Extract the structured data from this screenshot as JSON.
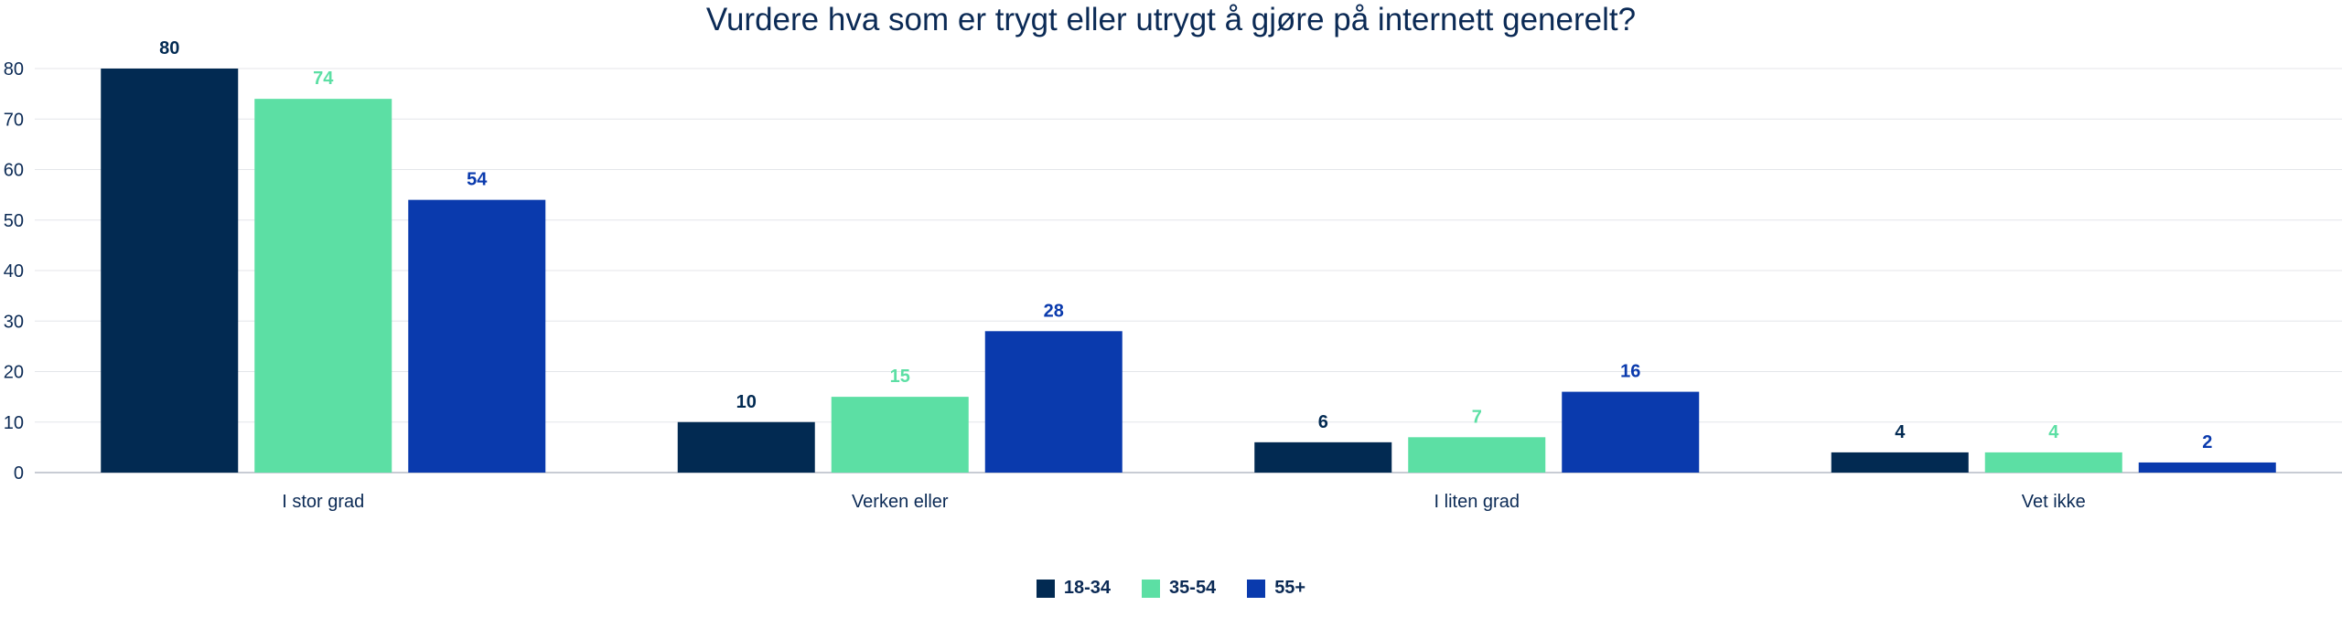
{
  "chart_data": {
    "type": "bar",
    "title": "Vurdere hva som er trygt eller utrygt å gjøre på internett generelt?",
    "categories": [
      "I stor grad",
      "Verken eller",
      "I liten grad",
      "Vet ikke"
    ],
    "series": [
      {
        "name": "18-34",
        "color": "#022a52",
        "values": [
          80,
          10,
          6,
          4
        ]
      },
      {
        "name": "35-54",
        "color": "#5cdfa4",
        "values": [
          74,
          15,
          7,
          4
        ]
      },
      {
        "name": "55+",
        "color": "#0a3aad",
        "values": [
          54,
          28,
          16,
          2
        ]
      }
    ],
    "ylim": [
      0,
      80
    ],
    "yticks": [
      0,
      10,
      20,
      30,
      40,
      50,
      60,
      70,
      80
    ],
    "grid": true,
    "legend_position": "bottom"
  }
}
